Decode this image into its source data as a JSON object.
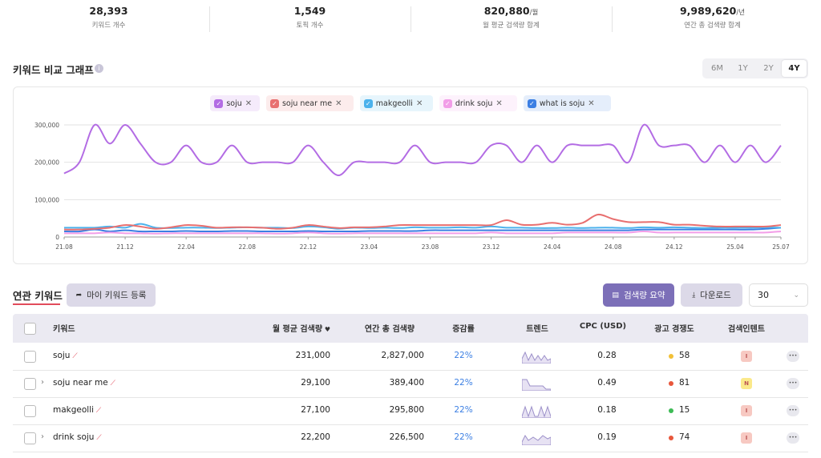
{
  "stats": [
    {
      "value": "28,393",
      "label": "키워드 개수"
    },
    {
      "value": "1,549",
      "label": "토픽 개수"
    },
    {
      "value": "820,880",
      "unit": "/월",
      "label": "월 평균 검색량 합계"
    },
    {
      "value": "9,989,620",
      "unit": "/년",
      "label": "연간 총 검색량 합계"
    }
  ],
  "chart_section": {
    "ranges": [
      "6M",
      "1Y",
      "2Y",
      "4Y"
    ],
    "active_range": "4Y"
  },
  "chart_data": {
    "type": "line",
    "title": "키워드 비교 그래프",
    "x": [
      "21.08",
      "21.09",
      "21.10",
      "21.11",
      "21.12",
      "22.01",
      "22.02",
      "22.03",
      "22.04",
      "22.05",
      "22.06",
      "22.07",
      "22.08",
      "22.09",
      "22.10",
      "22.11",
      "22.12",
      "23.01",
      "23.02",
      "23.03",
      "23.04",
      "23.05",
      "23.06",
      "23.07",
      "23.08",
      "23.09",
      "23.10",
      "23.11",
      "23.12",
      "24.01",
      "24.02",
      "24.03",
      "24.04",
      "24.05",
      "24.06",
      "24.07",
      "24.08",
      "24.09",
      "24.10",
      "24.11",
      "24.12",
      "25.01",
      "25.02",
      "25.03",
      "25.04",
      "25.05",
      "25.06",
      "25.07"
    ],
    "xticks": [
      "21.08",
      "21.12",
      "22.04",
      "22.08",
      "22.12",
      "23.04",
      "23.08",
      "23.12",
      "24.04",
      "24.08",
      "24.12",
      "25.04",
      "25.07"
    ],
    "ylim": [
      0,
      300000
    ],
    "yticks": [
      0,
      {
        "value": 100000,
        "label": "100,000"
      },
      {
        "value": 200000,
        "label": "200,000"
      },
      {
        "value": 300000,
        "label": "300,000"
      }
    ],
    "grid": true,
    "series": [
      {
        "name": "soju",
        "color": "#b36ce4",
        "values": [
          170000,
          200000,
          300000,
          250000,
          300000,
          250000,
          200000,
          200000,
          245000,
          200000,
          200000,
          245000,
          200000,
          200000,
          200000,
          200000,
          245000,
          200000,
          165000,
          200000,
          200000,
          200000,
          200000,
          245000,
          200000,
          200000,
          200000,
          200000,
          245000,
          245000,
          200000,
          245000,
          200000,
          245000,
          245000,
          245000,
          245000,
          200000,
          300000,
          245000,
          245000,
          245000,
          200000,
          245000,
          200000,
          245000,
          200000,
          245000
        ]
      },
      {
        "name": "soju near me",
        "color": "#e86f6f",
        "values": [
          20000,
          20000,
          22000,
          25000,
          32000,
          28000,
          22000,
          26000,
          32000,
          30000,
          25000,
          26000,
          26000,
          25000,
          22000,
          25000,
          32000,
          28000,
          24000,
          26000,
          26000,
          28000,
          32000,
          32000,
          32000,
          32000,
          32000,
          32000,
          32000,
          45000,
          33000,
          33000,
          38000,
          33000,
          38000,
          60000,
          48000,
          40000,
          40000,
          40000,
          33000,
          33000,
          30000,
          28000,
          28000,
          28000,
          28000,
          32000
        ]
      },
      {
        "name": "makgeolli",
        "color": "#4cb2ec",
        "values": [
          25000,
          25000,
          25000,
          28000,
          25000,
          35000,
          25000,
          24000,
          25000,
          25000,
          24000,
          25000,
          26000,
          25000,
          25000,
          24000,
          28000,
          26000,
          22000,
          25000,
          24000,
          25000,
          24000,
          26000,
          25000,
          25000,
          26000,
          25000,
          28000,
          25000,
          25000,
          24000,
          24000,
          25000,
          24000,
          25000,
          25000,
          24000,
          26000,
          25000,
          26000,
          25000,
          24000,
          25000,
          25000,
          25000,
          26000,
          25000
        ]
      },
      {
        "name": "drink soju",
        "color": "#f29ee8",
        "values": [
          10000,
          10000,
          10000,
          12000,
          10000,
          10000,
          9000,
          10000,
          10000,
          10000,
          10000,
          10000,
          10000,
          10000,
          9000,
          10000,
          12000,
          10000,
          9000,
          10000,
          10000,
          10000,
          10000,
          10000,
          10000,
          10000,
          10000,
          10000,
          12000,
          10000,
          10000,
          10000,
          10000,
          12000,
          12000,
          12000,
          12000,
          12000,
          15000,
          12000,
          12000,
          12000,
          12000,
          12000,
          12000,
          12000,
          12000,
          15000
        ]
      },
      {
        "name": "what is soju",
        "color": "#3b7fe3",
        "values": [
          15000,
          15000,
          20000,
          15000,
          18000,
          15000,
          15000,
          15000,
          16000,
          15000,
          15000,
          16000,
          16000,
          15000,
          15000,
          15000,
          16000,
          15000,
          15000,
          15000,
          16000,
          16000,
          16000,
          16000,
          18000,
          18000,
          18000,
          18000,
          18000,
          18000,
          18000,
          18000,
          18000,
          18000,
          18000,
          18000,
          18000,
          18000,
          20000,
          20000,
          20000,
          20000,
          20000,
          20000,
          20000,
          20000,
          22000,
          25000
        ]
      }
    ]
  },
  "related": {
    "tab": "연관 키워드",
    "register_button": "마이 키워드 등록",
    "summary_button": "검색량 요약",
    "download_button": "다운로드",
    "page_size": "30",
    "columns": [
      "키워드",
      "월 평균 검색량",
      "연간 총 검색량",
      "증감률",
      "트렌드",
      "CPC (USD)",
      "광고 경쟁도",
      "검색인텐트"
    ],
    "rows": [
      {
        "keyword": "soju",
        "expandable": false,
        "monthly": "231,000",
        "annual": "2,827,000",
        "change": "22%",
        "cpc": "0.28",
        "competition": "58",
        "competition_color": "#f2c037",
        "intent": "I",
        "intent_color": "#f7c9c2"
      },
      {
        "keyword": "soju near me",
        "expandable": true,
        "monthly": "29,100",
        "annual": "389,400",
        "change": "22%",
        "cpc": "0.49",
        "competition": "81",
        "competition_color": "#e8573c",
        "intent": "N",
        "intent_color": "#fbe98a"
      },
      {
        "keyword": "makgeolli",
        "expandable": false,
        "monthly": "27,100",
        "annual": "295,800",
        "change": "22%",
        "cpc": "0.18",
        "competition": "15",
        "competition_color": "#3dbb55",
        "intent": "I",
        "intent_color": "#f7c9c2"
      },
      {
        "keyword": "drink soju",
        "expandable": true,
        "monthly": "22,200",
        "annual": "226,500",
        "change": "22%",
        "cpc": "0.19",
        "competition": "74",
        "competition_color": "#e8573c",
        "intent": "I",
        "intent_color": "#f7c9c2"
      }
    ]
  }
}
